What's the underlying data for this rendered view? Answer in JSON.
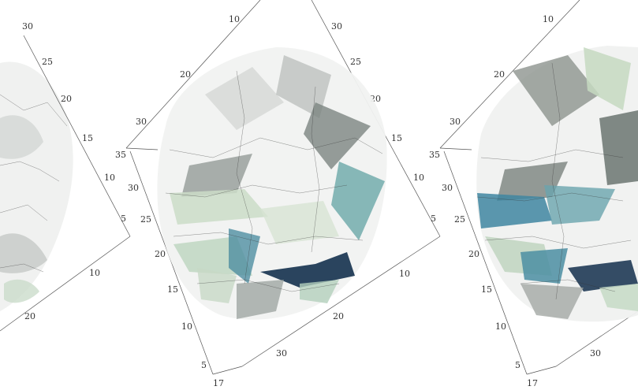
{
  "panels": [
    {
      "name": "panel-left",
      "ticks_a": [
        "30",
        "25",
        "20",
        "15",
        "10",
        "5"
      ],
      "ticks_b": [
        "10",
        "20"
      ]
    },
    {
      "name": "panel-middle",
      "ticks_top": [
        "10",
        "20",
        "30"
      ],
      "ticks_diag": [
        "30",
        "25",
        "20",
        "15",
        "10",
        "5"
      ],
      "ticks_left": [
        "35",
        "30",
        "25",
        "20",
        "15",
        "10",
        "5"
      ],
      "ticks_bottom": [
        "17",
        "30",
        "20",
        "10"
      ]
    },
    {
      "name": "panel-right",
      "ticks_top": [
        "10",
        "20",
        "30"
      ],
      "ticks_left": [
        "35",
        "30",
        "25",
        "20",
        "15",
        "10",
        "5"
      ],
      "ticks_bottom": [
        "17",
        "30"
      ]
    }
  ],
  "colors": {
    "grey_light": "#e8eae8",
    "grey_mid": "#9ea39f",
    "grey_dark": "#5f6663",
    "green_light": "#c9dcc6",
    "teal": "#5f9fa8",
    "blue_dark": "#1f3a55"
  }
}
